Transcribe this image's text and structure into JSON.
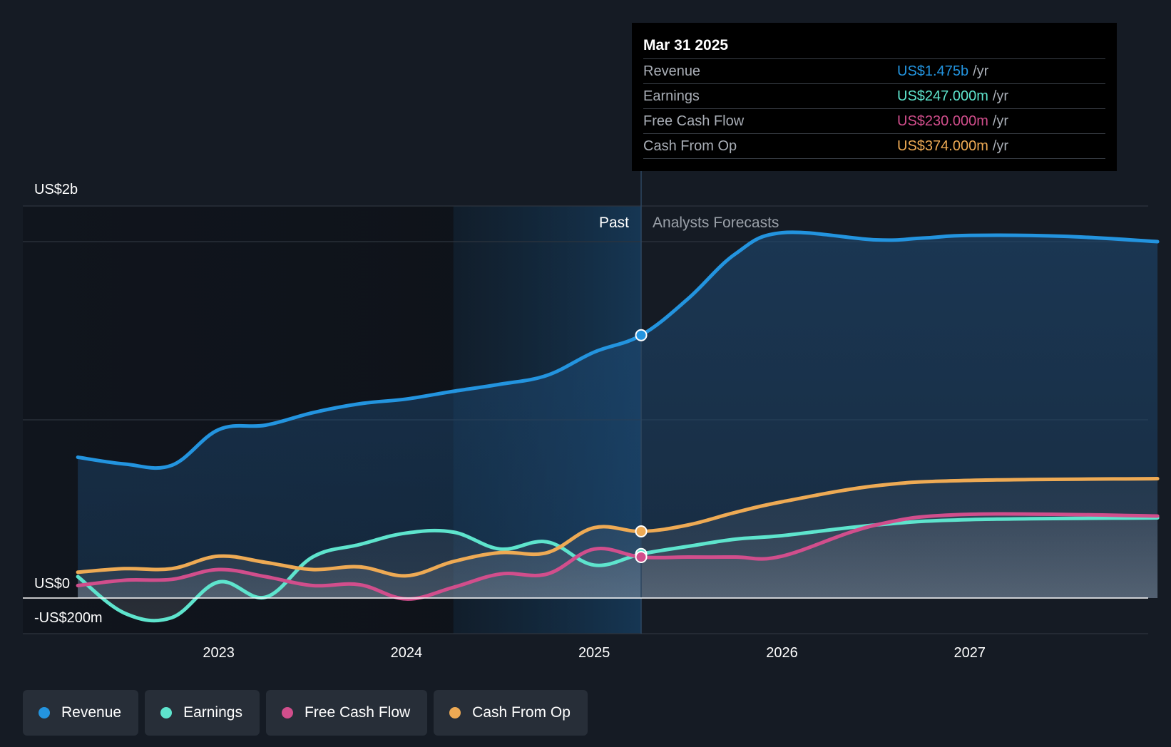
{
  "chart_data": {
    "type": "line",
    "y_unit": "USD millions",
    "ylim": [
      -200,
      2000
    ],
    "y_labels": [
      {
        "value": 2000,
        "label": "US$2b"
      },
      {
        "value": 0,
        "label": "US$0"
      },
      {
        "value": -200,
        "label": "-US$200m"
      }
    ],
    "x_ticks": [
      {
        "x": 2023.0,
        "label": "2023"
      },
      {
        "x": 2024.0,
        "label": "2024"
      },
      {
        "x": 2025.0,
        "label": "2025"
      },
      {
        "x": 2026.0,
        "label": "2026"
      },
      {
        "x": 2027.0,
        "label": "2027"
      }
    ],
    "xlim": [
      2022.0,
      2028.0
    ],
    "divider_x": 2025.25,
    "past_label": "Past",
    "forecast_label": "Analysts Forecasts",
    "series": [
      {
        "name": "Revenue",
        "color": "#2394df",
        "points": [
          [
            2022.25,
            790
          ],
          [
            2022.5,
            752
          ],
          [
            2022.75,
            745
          ],
          [
            2023.0,
            945
          ],
          [
            2023.25,
            970
          ],
          [
            2023.5,
            1040
          ],
          [
            2023.75,
            1090
          ],
          [
            2024.0,
            1117
          ],
          [
            2024.25,
            1160
          ],
          [
            2024.5,
            1200
          ],
          [
            2024.75,
            1250
          ],
          [
            2025.0,
            1380
          ],
          [
            2025.25,
            1475
          ],
          [
            2025.5,
            1680
          ],
          [
            2025.75,
            1930
          ],
          [
            2026.0,
            2050
          ],
          [
            2026.5,
            2010
          ],
          [
            2026.75,
            2020
          ],
          [
            2027.0,
            2035
          ],
          [
            2027.5,
            2030
          ],
          [
            2028.0,
            2000
          ]
        ]
      },
      {
        "name": "Earnings",
        "color": "#5ee4cd",
        "points": [
          [
            2022.25,
            120
          ],
          [
            2022.5,
            -85
          ],
          [
            2022.75,
            -110
          ],
          [
            2023.0,
            90
          ],
          [
            2023.25,
            5
          ],
          [
            2023.5,
            230
          ],
          [
            2023.75,
            300
          ],
          [
            2024.0,
            365
          ],
          [
            2024.25,
            370
          ],
          [
            2024.5,
            275
          ],
          [
            2024.75,
            315
          ],
          [
            2025.0,
            185
          ],
          [
            2025.25,
            247
          ],
          [
            2025.5,
            290
          ],
          [
            2025.75,
            330
          ],
          [
            2026.0,
            350
          ],
          [
            2026.5,
            410
          ],
          [
            2027.0,
            440
          ],
          [
            2028.0,
            450
          ]
        ]
      },
      {
        "name": "Free Cash Flow",
        "color": "#d14e8c",
        "points": [
          [
            2022.25,
            70
          ],
          [
            2022.5,
            100
          ],
          [
            2022.75,
            105
          ],
          [
            2023.0,
            160
          ],
          [
            2023.25,
            120
          ],
          [
            2023.5,
            70
          ],
          [
            2023.75,
            75
          ],
          [
            2024.0,
            -5
          ],
          [
            2024.25,
            60
          ],
          [
            2024.5,
            135
          ],
          [
            2024.75,
            135
          ],
          [
            2025.0,
            275
          ],
          [
            2025.25,
            230
          ],
          [
            2025.5,
            230
          ],
          [
            2025.75,
            230
          ],
          [
            2026.0,
            235
          ],
          [
            2026.5,
            410
          ],
          [
            2027.0,
            470
          ],
          [
            2028.0,
            460
          ]
        ]
      },
      {
        "name": "Cash From Op",
        "color": "#eeaa54",
        "points": [
          [
            2022.25,
            145
          ],
          [
            2022.5,
            165
          ],
          [
            2022.75,
            165
          ],
          [
            2023.0,
            235
          ],
          [
            2023.25,
            200
          ],
          [
            2023.5,
            160
          ],
          [
            2023.75,
            175
          ],
          [
            2024.0,
            125
          ],
          [
            2024.25,
            205
          ],
          [
            2024.5,
            255
          ],
          [
            2024.75,
            255
          ],
          [
            2025.0,
            395
          ],
          [
            2025.25,
            374
          ],
          [
            2025.5,
            410
          ],
          [
            2025.75,
            480
          ],
          [
            2026.0,
            540
          ],
          [
            2026.5,
            630
          ],
          [
            2027.0,
            660
          ],
          [
            2028.0,
            670
          ]
        ]
      }
    ],
    "highlight_x": 2025.25
  },
  "tooltip": {
    "date": "Mar 31 2025",
    "rows": [
      {
        "label": "Revenue",
        "value": "US$1.475b",
        "unit": "/yr",
        "color": "#2394df"
      },
      {
        "label": "Earnings",
        "value": "US$247.000m",
        "unit": "/yr",
        "color": "#5ee4cd"
      },
      {
        "label": "Free Cash Flow",
        "value": "US$230.000m",
        "unit": "/yr",
        "color": "#d14e8c"
      },
      {
        "label": "Cash From Op",
        "value": "US$374.000m",
        "unit": "/yr",
        "color": "#eeaa54"
      }
    ]
  },
  "legend": [
    {
      "label": "Revenue",
      "color": "#2394df"
    },
    {
      "label": "Earnings",
      "color": "#5ee4cd"
    },
    {
      "label": "Free Cash Flow",
      "color": "#d14e8c"
    },
    {
      "label": "Cash From Op",
      "color": "#eeaa54"
    }
  ]
}
